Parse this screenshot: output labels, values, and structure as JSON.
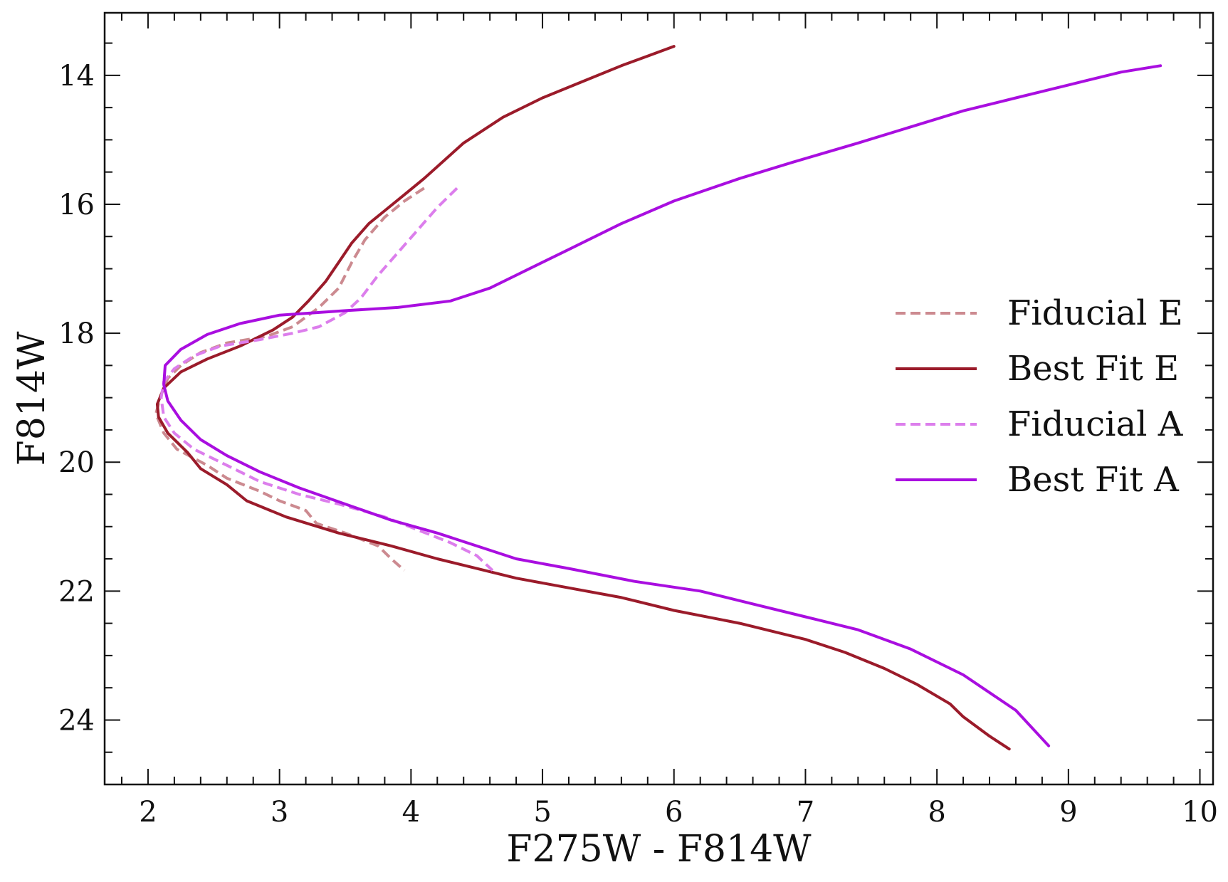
{
  "chart_data": {
    "type": "line",
    "xlabel": "F275W - F814W",
    "ylabel": "F814W",
    "xlim": [
      1.67,
      10.1
    ],
    "ylim": [
      25.0,
      13.03
    ],
    "y_inverted": true,
    "xticks": [
      2,
      3,
      4,
      5,
      6,
      7,
      8,
      9,
      10
    ],
    "yticks": [
      14,
      16,
      18,
      20,
      22,
      24
    ],
    "grid": false,
    "legend_position": "right",
    "series": [
      {
        "name": "Fiducial E",
        "style": "dashed",
        "color": "#cc8a90",
        "points": [
          [
            4.1,
            15.75
          ],
          [
            3.95,
            15.95
          ],
          [
            3.8,
            16.2
          ],
          [
            3.65,
            16.55
          ],
          [
            3.55,
            16.9
          ],
          [
            3.45,
            17.3
          ],
          [
            3.3,
            17.6
          ],
          [
            3.1,
            17.9
          ],
          [
            2.9,
            18.05
          ],
          [
            2.6,
            18.15
          ],
          [
            2.4,
            18.3
          ],
          [
            2.25,
            18.5
          ],
          [
            2.15,
            18.7
          ],
          [
            2.1,
            18.95
          ],
          [
            2.06,
            19.25
          ],
          [
            2.12,
            19.55
          ],
          [
            2.22,
            19.8
          ],
          [
            2.45,
            20.05
          ],
          [
            2.6,
            20.25
          ],
          [
            2.85,
            20.45
          ],
          [
            3.0,
            20.6
          ],
          [
            3.2,
            20.75
          ],
          [
            3.28,
            20.95
          ],
          [
            3.5,
            21.1
          ],
          [
            3.75,
            21.3
          ],
          [
            3.85,
            21.5
          ],
          [
            3.95,
            21.68
          ]
        ]
      },
      {
        "name": "Best Fit E",
        "style": "solid",
        "color": "#9b1b2a",
        "points": [
          [
            6.0,
            13.55
          ],
          [
            5.8,
            13.7
          ],
          [
            5.6,
            13.85
          ],
          [
            5.3,
            14.1
          ],
          [
            5.0,
            14.35
          ],
          [
            4.7,
            14.65
          ],
          [
            4.4,
            15.05
          ],
          [
            4.1,
            15.6
          ],
          [
            3.95,
            15.85
          ],
          [
            3.8,
            16.1
          ],
          [
            3.68,
            16.3
          ],
          [
            3.55,
            16.6
          ],
          [
            3.45,
            16.9
          ],
          [
            3.35,
            17.2
          ],
          [
            3.22,
            17.5
          ],
          [
            3.1,
            17.75
          ],
          [
            2.95,
            17.95
          ],
          [
            2.7,
            18.2
          ],
          [
            2.45,
            18.4
          ],
          [
            2.25,
            18.6
          ],
          [
            2.12,
            18.85
          ],
          [
            2.07,
            19.1
          ],
          [
            2.08,
            19.3
          ],
          [
            2.15,
            19.55
          ],
          [
            2.3,
            19.85
          ],
          [
            2.4,
            20.1
          ],
          [
            2.6,
            20.35
          ],
          [
            2.75,
            20.6
          ],
          [
            3.05,
            20.85
          ],
          [
            3.45,
            21.1
          ],
          [
            3.85,
            21.3
          ],
          [
            4.2,
            21.5
          ],
          [
            4.5,
            21.65
          ],
          [
            4.8,
            21.8
          ],
          [
            5.2,
            21.95
          ],
          [
            5.6,
            22.1
          ],
          [
            6.0,
            22.3
          ],
          [
            6.5,
            22.5
          ],
          [
            7.0,
            22.75
          ],
          [
            7.3,
            22.95
          ],
          [
            7.6,
            23.2
          ],
          [
            7.85,
            23.45
          ],
          [
            8.1,
            23.75
          ],
          [
            8.2,
            23.95
          ],
          [
            8.4,
            24.25
          ],
          [
            8.55,
            24.45
          ]
        ]
      },
      {
        "name": "Fiducial A",
        "style": "dashed",
        "color": "#dc7eec",
        "points": [
          [
            4.35,
            15.75
          ],
          [
            4.2,
            16.05
          ],
          [
            4.05,
            16.4
          ],
          [
            3.9,
            16.75
          ],
          [
            3.75,
            17.1
          ],
          [
            3.62,
            17.45
          ],
          [
            3.5,
            17.68
          ],
          [
            3.3,
            17.9
          ],
          [
            3.1,
            18.0
          ],
          [
            2.85,
            18.1
          ],
          [
            2.55,
            18.2
          ],
          [
            2.35,
            18.35
          ],
          [
            2.2,
            18.55
          ],
          [
            2.12,
            18.75
          ],
          [
            2.1,
            19.0
          ],
          [
            2.12,
            19.3
          ],
          [
            2.2,
            19.55
          ],
          [
            2.35,
            19.8
          ],
          [
            2.6,
            20.05
          ],
          [
            2.85,
            20.3
          ],
          [
            3.15,
            20.5
          ],
          [
            3.45,
            20.65
          ],
          [
            3.8,
            20.85
          ],
          [
            4.05,
            21.05
          ],
          [
            4.3,
            21.25
          ],
          [
            4.5,
            21.45
          ],
          [
            4.62,
            21.68
          ]
        ]
      },
      {
        "name": "Best Fit A",
        "style": "solid",
        "color": "#a90ee0",
        "points": [
          [
            9.7,
            13.85
          ],
          [
            9.4,
            13.95
          ],
          [
            9.0,
            14.15
          ],
          [
            8.6,
            14.35
          ],
          [
            8.2,
            14.55
          ],
          [
            7.8,
            14.8
          ],
          [
            7.4,
            15.05
          ],
          [
            6.9,
            15.35
          ],
          [
            6.5,
            15.6
          ],
          [
            6.0,
            15.95
          ],
          [
            5.6,
            16.3
          ],
          [
            5.2,
            16.7
          ],
          [
            4.85,
            17.05
          ],
          [
            4.6,
            17.3
          ],
          [
            4.3,
            17.5
          ],
          [
            3.9,
            17.6
          ],
          [
            3.5,
            17.65
          ],
          [
            3.0,
            17.72
          ],
          [
            2.7,
            17.85
          ],
          [
            2.45,
            18.02
          ],
          [
            2.25,
            18.25
          ],
          [
            2.13,
            18.5
          ],
          [
            2.12,
            18.8
          ],
          [
            2.15,
            19.05
          ],
          [
            2.25,
            19.35
          ],
          [
            2.4,
            19.65
          ],
          [
            2.6,
            19.9
          ],
          [
            2.85,
            20.15
          ],
          [
            3.15,
            20.4
          ],
          [
            3.5,
            20.65
          ],
          [
            3.85,
            20.9
          ],
          [
            4.2,
            21.1
          ],
          [
            4.5,
            21.3
          ],
          [
            4.8,
            21.5
          ],
          [
            5.2,
            21.65
          ],
          [
            5.7,
            21.85
          ],
          [
            6.2,
            22.0
          ],
          [
            6.6,
            22.2
          ],
          [
            7.0,
            22.4
          ],
          [
            7.4,
            22.6
          ],
          [
            7.8,
            22.9
          ],
          [
            8.2,
            23.3
          ],
          [
            8.6,
            23.85
          ],
          [
            8.85,
            24.4
          ]
        ]
      }
    ]
  }
}
